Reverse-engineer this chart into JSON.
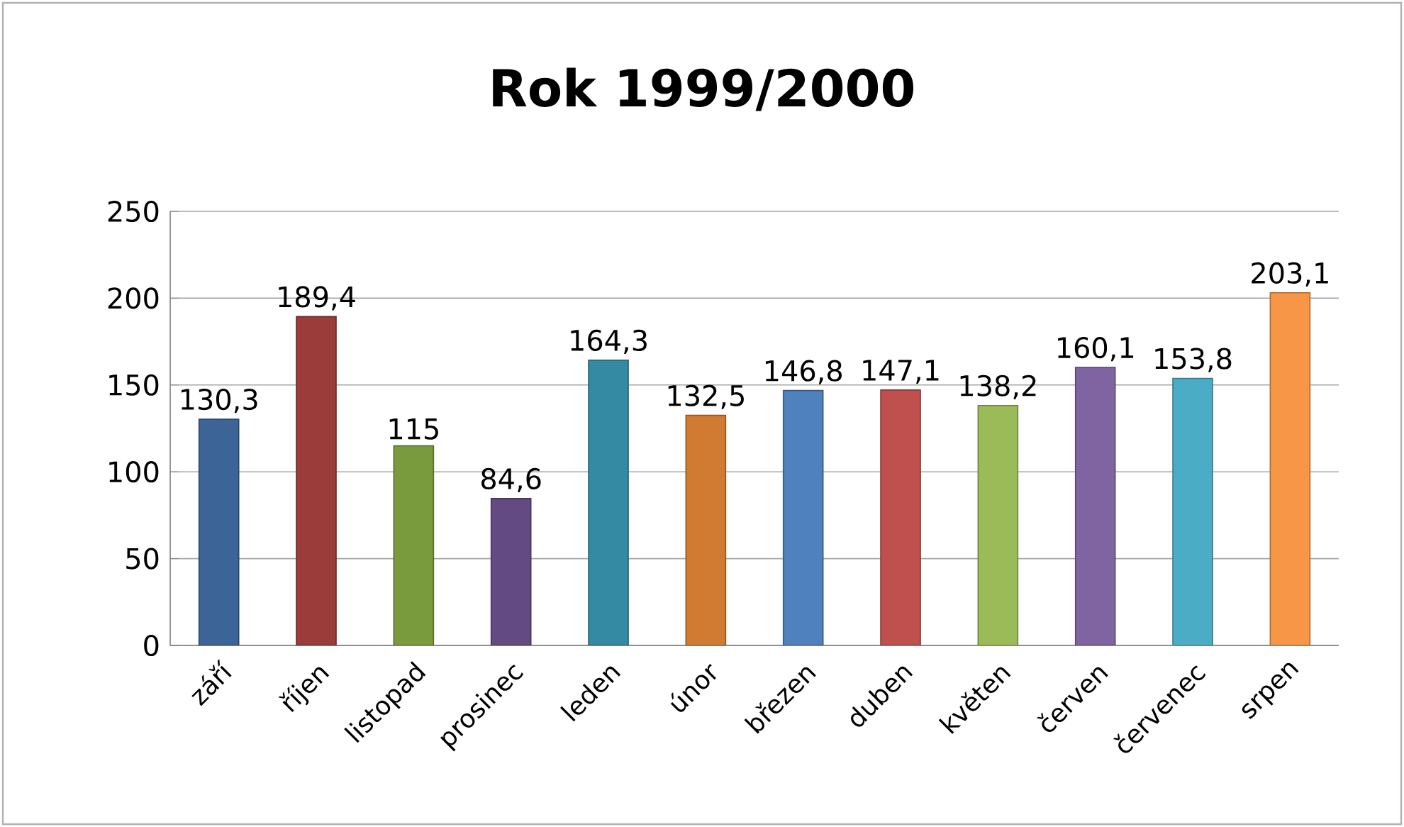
{
  "chart_data": {
    "type": "bar",
    "title": "Rok 1999/2000",
    "categories": [
      "září",
      "říjen",
      "listopad",
      "prosinec",
      "leden",
      "únor",
      "březen",
      "duben",
      "květen",
      "červen",
      "červenec",
      "srpen"
    ],
    "values": [
      130.3,
      189.4,
      115,
      84.6,
      164.3,
      132.5,
      146.8,
      147.1,
      138.2,
      160.1,
      153.8,
      203.1
    ],
    "value_labels": [
      "130,3",
      "189,4",
      "115",
      "84,6",
      "164,3",
      "132,5",
      "146,8",
      "147,1",
      "138,2",
      "160,1",
      "153,8",
      "203,1"
    ],
    "colors": [
      "#3c6496",
      "#9b3b3a",
      "#7a9a3e",
      "#644a83",
      "#348aa3",
      "#d17a32",
      "#4f81bd",
      "#c0504d",
      "#9bbb59",
      "#8064a2",
      "#4bacc6",
      "#f79646"
    ],
    "ylim": [
      0,
      250
    ],
    "yticks": [
      0,
      50,
      100,
      150,
      200,
      250
    ],
    "grid": "y"
  }
}
